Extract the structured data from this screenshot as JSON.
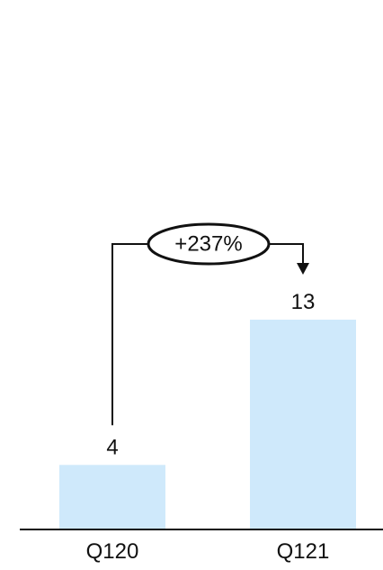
{
  "chart_data": {
    "type": "bar",
    "categories": [
      "Q120",
      "Q121"
    ],
    "values": [
      4,
      13
    ],
    "value_labels": [
      "4",
      "13"
    ],
    "title": "",
    "xlabel": "",
    "ylabel": "",
    "ylim": [
      0,
      16
    ],
    "grid": false,
    "legend": "none",
    "annotation": {
      "text": "+237%",
      "from_category": "Q120",
      "to_category": "Q121"
    },
    "colors": {
      "bar": "#cfe9fb",
      "axis": "#111111",
      "text": "#111111",
      "connector": "#111111"
    }
  }
}
